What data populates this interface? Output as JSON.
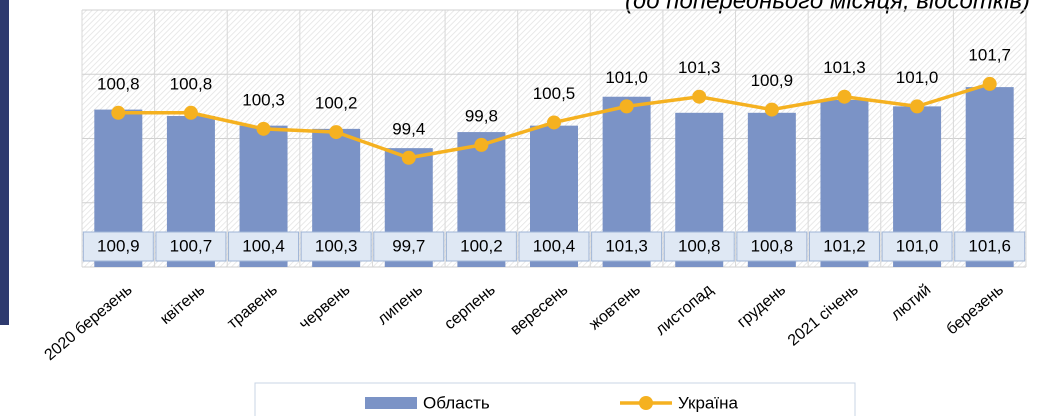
{
  "chart_data": {
    "type": "bar-line",
    "subtitle": "(до попереднього місяця, відсотків)",
    "categories": [
      "2020 березень",
      "квітень",
      "травень",
      "червень",
      "липень",
      "серпень",
      "вересень",
      "жовтень",
      "листопад",
      "грудень",
      "2021 січень",
      "лютий",
      "березень"
    ],
    "series": [
      {
        "name": "Область",
        "type": "bar",
        "color": "#7b93c6",
        "values": [
          100.9,
          100.7,
          100.4,
          100.3,
          99.7,
          100.2,
          100.4,
          101.3,
          100.8,
          100.8,
          101.2,
          101.0,
          101.6
        ],
        "value_labels": [
          "100,9",
          "100,7",
          "100,4",
          "100,3",
          "99,7",
          "100,2",
          "100,4",
          "101,3",
          "100,8",
          "100,8",
          "101,2",
          "101,0",
          "101,6"
        ]
      },
      {
        "name": "Україна",
        "type": "line",
        "color": "#f5b120",
        "values": [
          100.8,
          100.8,
          100.3,
          100.2,
          99.4,
          99.8,
          100.5,
          101.0,
          101.3,
          100.9,
          101.3,
          101.0,
          101.7
        ],
        "value_labels": [
          "100,8",
          "100,8",
          "100,3",
          "100,2",
          "99,4",
          "99,8",
          "100,5",
          "101,0",
          "101,3",
          "100,9",
          "101,3",
          "101,0",
          "101,7"
        ]
      }
    ],
    "ylim": [
      96,
      104
    ],
    "yticks": [
      96,
      98,
      100,
      102,
      104
    ],
    "grid": true,
    "legend": "bottom"
  }
}
